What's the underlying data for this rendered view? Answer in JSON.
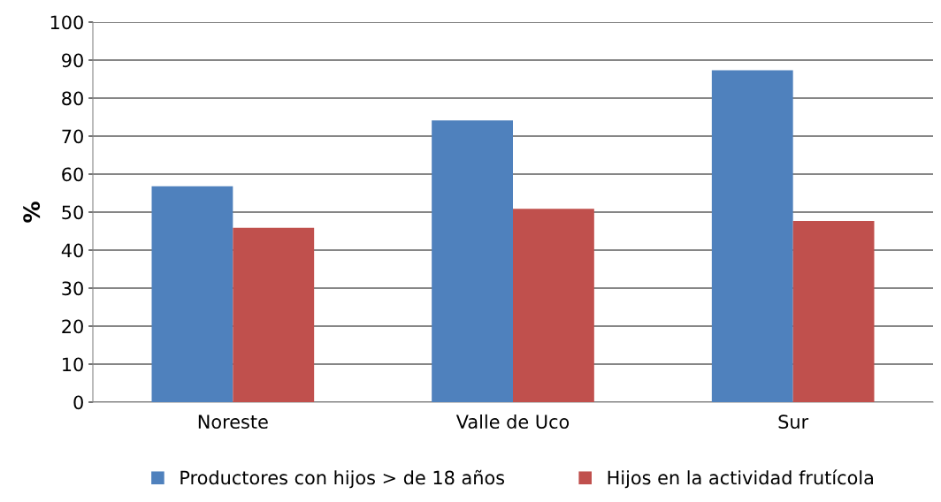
{
  "chart_data": {
    "type": "bar",
    "ylabel": "%",
    "categories": [
      "Noreste",
      "Valle de Uco",
      "Sur"
    ],
    "series": [
      {
        "name": "Productores con hijos > de 18 años",
        "color": "#4f81bd",
        "values": [
          56.8,
          74.1,
          87.3
        ]
      },
      {
        "name": "Hijos en la actividad frutícola",
        "color": "#c0504d",
        "values": [
          45.9,
          50.9,
          47.7
        ]
      }
    ],
    "ylim": [
      0,
      100
    ],
    "yticks": [
      0,
      10,
      20,
      30,
      40,
      50,
      60,
      70,
      80,
      90,
      100
    ],
    "grid": "y",
    "legend": "bottom"
  }
}
